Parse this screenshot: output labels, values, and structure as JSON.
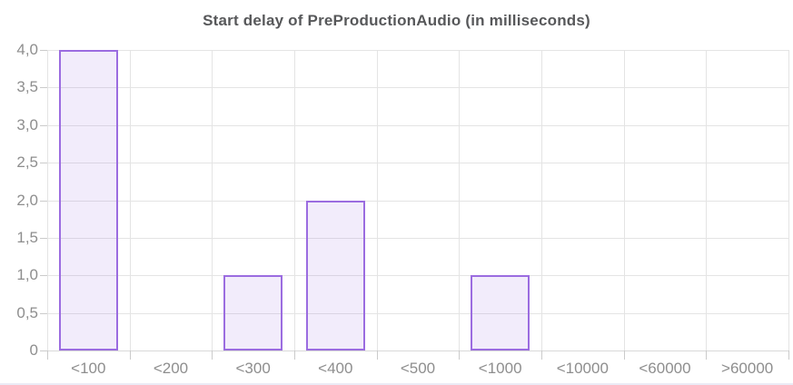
{
  "chart_data": {
    "type": "bar",
    "title": "Start delay of PreProductionAudio (in milliseconds)",
    "categories": [
      "<100",
      "<200",
      "<300",
      "<400",
      "<500",
      "<1000",
      "<10000",
      "<60000",
      ">60000"
    ],
    "values": [
      4,
      0,
      1,
      2,
      0,
      1,
      0,
      0,
      0
    ],
    "xlabel": "",
    "ylabel": "",
    "ylim": [
      0,
      4
    ],
    "y_tick_labels": [
      "4,0",
      "3,5",
      "3,0",
      "2,5",
      "2,0",
      "1,5",
      "1,0",
      "0,5",
      "0"
    ],
    "y_tick_values": [
      4,
      3.5,
      3,
      2.5,
      2,
      1.5,
      1,
      0.5,
      0
    ],
    "grid": "on",
    "legend_position": "none",
    "colors": {
      "bar_fill": "rgba(155,108,224,0.13)",
      "bar_border": "#9b6ce0",
      "grid": "#e4e4e4",
      "baseline": "#d9d9d9",
      "tick": "#cbcbcb",
      "axis_label": "#8e8e8e",
      "title": "#57585a",
      "background": "#ffffff",
      "page_bottom_border": "#ebebf5"
    }
  }
}
